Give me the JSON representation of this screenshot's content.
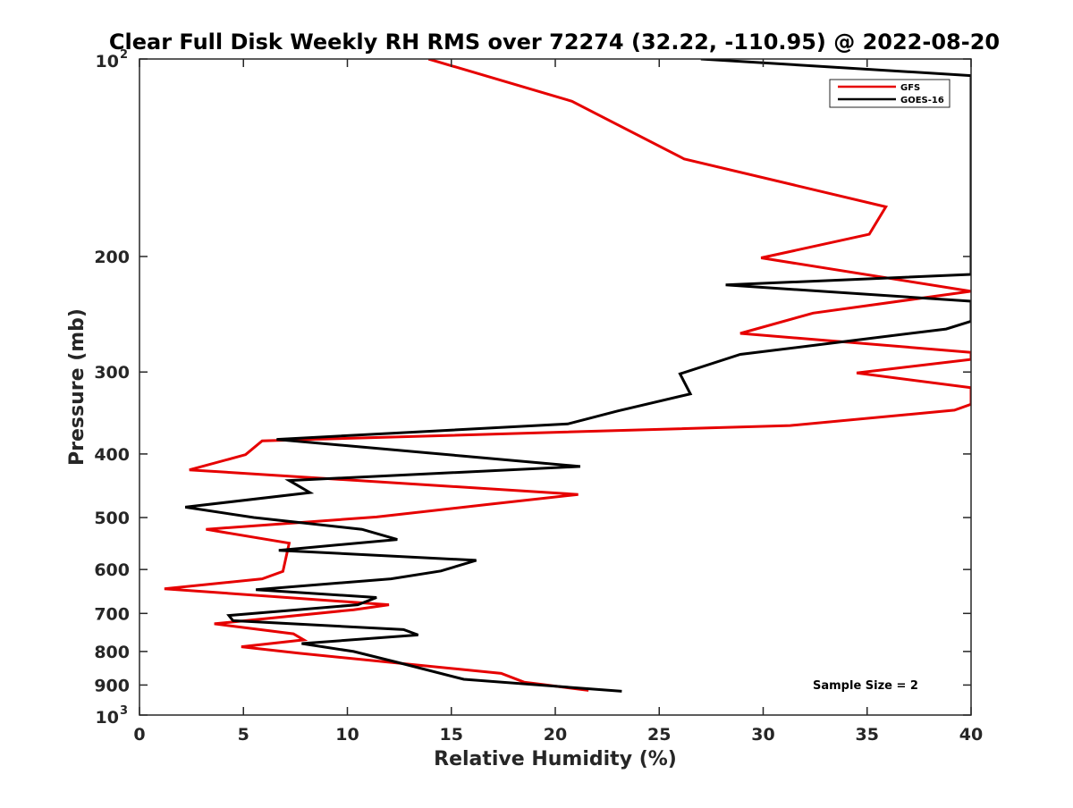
{
  "chart_data": {
    "type": "line",
    "title": "Clear Full Disk Weekly RH RMS over 72274 (32.22, -110.95) @ 2022-08-20",
    "xlabel": "Relative Humidity (%)",
    "ylabel": "Pressure (mb)",
    "xlim": [
      0,
      40
    ],
    "ylim": [
      100,
      1000
    ],
    "y_scale": "log",
    "y_reversed": true,
    "x_ticks": [
      "0",
      "5",
      "10",
      "15",
      "20",
      "25",
      "30",
      "35",
      "40"
    ],
    "y_ticks": [
      {
        "value": 100,
        "label": "10",
        "exp": "2"
      },
      {
        "value": 200,
        "label": "200",
        "exp": ""
      },
      {
        "value": 300,
        "label": "300",
        "exp": ""
      },
      {
        "value": 400,
        "label": "400",
        "exp": ""
      },
      {
        "value": 500,
        "label": "500",
        "exp": ""
      },
      {
        "value": 600,
        "label": "600",
        "exp": ""
      },
      {
        "value": 700,
        "label": "700",
        "exp": ""
      },
      {
        "value": 800,
        "label": "800",
        "exp": ""
      },
      {
        "value": 900,
        "label": "900",
        "exp": ""
      },
      {
        "value": 1000,
        "label": "10",
        "exp": "3"
      }
    ],
    "grid": false,
    "legend_position": "top-right",
    "annotation": "Sample Size = 2",
    "series": [
      {
        "name": "GFS",
        "color": "#e60000",
        "points": [
          [
            13.9,
            100
          ],
          [
            20.8,
            116
          ],
          [
            26.2,
            142
          ],
          [
            35.9,
            168
          ],
          [
            35.1,
            185
          ],
          [
            29.9,
            201
          ],
          [
            40.0,
            226
          ],
          [
            32.4,
            244
          ],
          [
            28.9,
            262
          ],
          [
            40.0,
            280
          ],
          [
            40.0,
            287
          ],
          [
            34.5,
            301
          ],
          [
            40.0,
            317
          ],
          [
            40.0,
            336
          ],
          [
            39.2,
            343
          ],
          [
            31.3,
            362
          ],
          [
            5.9,
            382
          ],
          [
            5.1,
            401
          ],
          [
            2.4,
            423
          ],
          [
            21.1,
            461
          ],
          [
            16.9,
            477
          ],
          [
            11.4,
            499
          ],
          [
            3.2,
            521
          ],
          [
            7.2,
            547
          ],
          [
            6.9,
            604
          ],
          [
            5.9,
            620
          ],
          [
            1.2,
            642
          ],
          [
            12.0,
            679
          ],
          [
            10.3,
            691
          ],
          [
            3.6,
            726
          ],
          [
            7.4,
            752
          ],
          [
            7.9,
            768
          ],
          [
            4.9,
            787
          ],
          [
            7.7,
            805
          ],
          [
            17.4,
            864
          ],
          [
            18.5,
            891
          ],
          [
            21.6,
            917
          ]
        ]
      },
      {
        "name": "GOES-16",
        "color": "#000000",
        "points": [
          [
            27.0,
            100
          ],
          [
            40.0,
            106
          ],
          [
            40.0,
            106
          ],
          [
            40.0,
            213
          ],
          [
            28.2,
            221
          ],
          [
            40.0,
            234
          ],
          [
            40.0,
            251
          ],
          [
            38.8,
            258
          ],
          [
            28.9,
            282
          ],
          [
            26.0,
            302
          ],
          [
            26.5,
            324
          ],
          [
            23.0,
            344
          ],
          [
            20.6,
            360
          ],
          [
            6.6,
            380
          ],
          [
            21.2,
            418
          ],
          [
            7.2,
            439
          ],
          [
            8.2,
            458
          ],
          [
            2.2,
            482
          ],
          [
            5.5,
            500
          ],
          [
            10.7,
            521
          ],
          [
            12.4,
            540
          ],
          [
            6.7,
            561
          ],
          [
            16.2,
            581
          ],
          [
            14.5,
            603
          ],
          [
            12.1,
            620
          ],
          [
            5.6,
            644
          ],
          [
            11.4,
            662
          ],
          [
            10.5,
            679
          ],
          [
            4.3,
            705
          ],
          [
            4.5,
            718
          ],
          [
            12.7,
            741
          ],
          [
            13.4,
            755
          ],
          [
            7.8,
            778
          ],
          [
            10.3,
            800
          ],
          [
            12.4,
            831
          ],
          [
            15.6,
            882
          ],
          [
            23.2,
            920
          ]
        ]
      }
    ]
  }
}
